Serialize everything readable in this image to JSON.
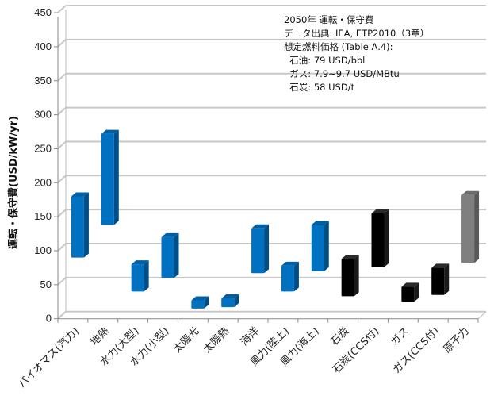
{
  "chart_data": {
    "type": "bar",
    "subtype": "floating-range-3d",
    "ylabel": "運転・保守費(USD/kW/yr)",
    "xlabel": "",
    "ylim": [
      0,
      450
    ],
    "yticks": [
      0,
      50,
      100,
      150,
      200,
      250,
      300,
      350,
      400,
      450
    ],
    "grid": true,
    "categories": [
      "バイオマス(汽力)",
      "地熱",
      "水力(大型)",
      "水力(小型)",
      "太陽光",
      "太陽熱",
      "海洋",
      "風力(陸上)",
      "風力(海上)",
      "石炭",
      "石炭(CCS付)",
      "ガス",
      "ガス(CCS付)",
      "原子力"
    ],
    "low": [
      90,
      138,
      40,
      60,
      15,
      17,
      67,
      40,
      70,
      33,
      76,
      25,
      35,
      82
    ],
    "high": [
      180,
      272,
      80,
      120,
      27,
      30,
      133,
      78,
      138,
      88,
      155,
      47,
      75,
      182
    ],
    "colors": [
      "#0070c0",
      "#0070c0",
      "#0070c0",
      "#0070c0",
      "#0070c0",
      "#0070c0",
      "#0070c0",
      "#0070c0",
      "#0070c0",
      "#000000",
      "#000000",
      "#000000",
      "#000000",
      "#7f7f7f"
    ],
    "annotation": [
      "2050年 運転・保守費",
      "データ出典: IEA, ETP2010（3章）",
      "想定燃料価格 (Table A.4):",
      "  石油: 79 USD/bbl",
      "  ガス: 7.9~9.7 USD/MBtu",
      "  石炭: 58 USD/t"
    ]
  }
}
